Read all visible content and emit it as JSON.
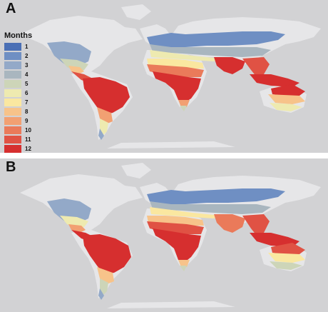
{
  "panels": [
    {
      "letter": "A"
    },
    {
      "letter": "B"
    }
  ],
  "legend": {
    "title": "Months",
    "items": [
      {
        "label": "1",
        "color": "#4a6fb5"
      },
      {
        "label": "2",
        "color": "#6f8fc3"
      },
      {
        "label": "3",
        "color": "#93a9c8"
      },
      {
        "label": "4",
        "color": "#a9b6bf"
      },
      {
        "label": "5",
        "color": "#cdd5b8"
      },
      {
        "label": "6",
        "color": "#eeeab0"
      },
      {
        "label": "7",
        "color": "#fae7a0"
      },
      {
        "label": "8",
        "color": "#f7c38a"
      },
      {
        "label": "9",
        "color": "#f2a072"
      },
      {
        "label": "10",
        "color": "#ea7a5a"
      },
      {
        "label": "11",
        "color": "#e05244"
      },
      {
        "label": "12",
        "color": "#d62f2f"
      }
    ]
  },
  "colors": {
    "ocean": "#d2d2d4",
    "land_unsuitable": "#e6e6e8",
    "divider": "#ffffff"
  }
}
